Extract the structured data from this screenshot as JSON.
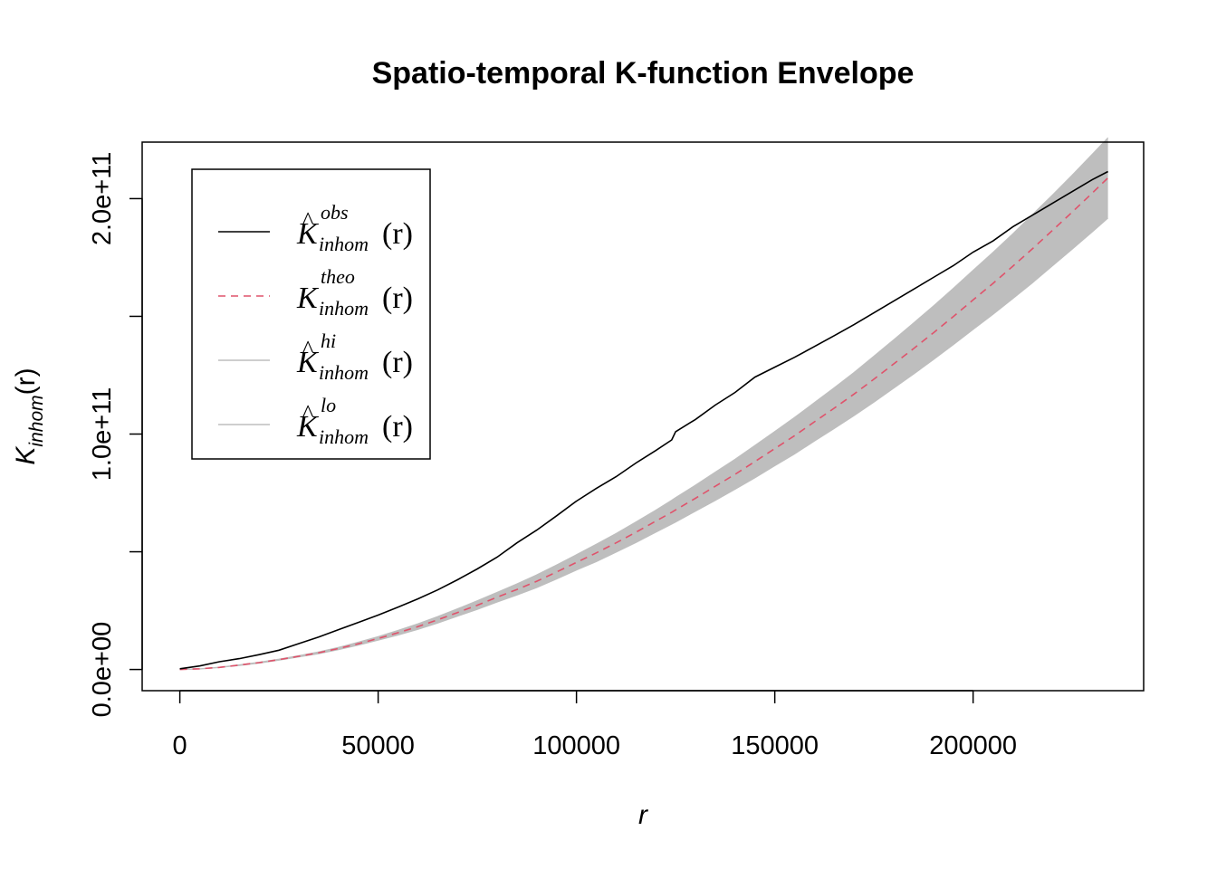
{
  "chart_data": {
    "type": "line",
    "title": "Spatio-temporal K-function Envelope",
    "xlabel": "r",
    "ylabel": {
      "base": "K",
      "subscript": "inhom",
      "arg": "(r)"
    },
    "xlim": [
      -9500,
      243000
    ],
    "ylim": [
      -9000000000,
      224000000000
    ],
    "x_ticks": [
      0,
      50000,
      100000,
      150000,
      200000
    ],
    "x_tick_labels": [
      "0",
      "50000",
      "100000",
      "150000",
      "200000"
    ],
    "y_ticks": [
      0,
      50000000000,
      100000000000,
      150000000000,
      200000000000
    ],
    "y_tick_labels": [
      "0.0e+00",
      "",
      "1.0e+11",
      "",
      "2.0e+11"
    ],
    "grid": false,
    "legend_position": "top-left",
    "legend": [
      {
        "id": "obs",
        "base": "K",
        "hat": true,
        "sup": "obs",
        "sub": "inhom",
        "arg": "(r)",
        "color": "#000000",
        "dash": "solid"
      },
      {
        "id": "theo",
        "base": "K",
        "hat": false,
        "sup": "theo",
        "sub": "inhom",
        "arg": "(r)",
        "color": "#DF536B",
        "dash": "dashed"
      },
      {
        "id": "hi",
        "base": "K",
        "hat": true,
        "sup": "hi",
        "sub": "inhom",
        "arg": "(r)",
        "color": "#BEBEBE",
        "dash": "solid"
      },
      {
        "id": "lo",
        "base": "K",
        "hat": true,
        "sup": "lo",
        "sub": "inhom",
        "arg": "(r)",
        "color": "#BEBEBE",
        "dash": "solid"
      }
    ],
    "x": [
      0,
      5000,
      10000,
      15000,
      20000,
      25000,
      30000,
      35000,
      40000,
      45000,
      50000,
      55000,
      60000,
      65000,
      70000,
      75000,
      80000,
      85000,
      90000,
      95000,
      100000,
      105000,
      110000,
      115000,
      120000,
      124000,
      125000,
      130000,
      135000,
      140000,
      145000,
      150000,
      155000,
      160000,
      165000,
      170000,
      175000,
      180000,
      185000,
      190000,
      195000,
      200000,
      205000,
      210000,
      215000,
      220000,
      225000,
      230000,
      234000
    ],
    "series": [
      {
        "name": "obs",
        "color": "#000000",
        "dash": "solid",
        "values": [
          300000000.0,
          1500000000.0,
          3300000000.0,
          4600000000.0,
          6300000000.0,
          8200000000.0,
          11000000000.0,
          13800000000.0,
          16900000000.0,
          20000000000.0,
          23100000000.0,
          26500000000.0,
          30000000000.0,
          33800000000.0,
          38100000000.0,
          42700000000.0,
          47700000000.0,
          53800000000.0,
          59200000000.0,
          65300000000.0,
          71500000000.0,
          76900000000.0,
          81900000000.0,
          87700000000.0,
          93000000000.0,
          97500000000.0,
          101000000000.0,
          106200000000.0,
          112300000000.0,
          117700000000.0,
          124200000000.0,
          128400000000.0,
          132600000000.0,
          137200000000.0,
          141800000000.0,
          146500000000.0,
          151500000000.0,
          156500000000.0,
          161500000000.0,
          166500000000.0,
          171500000000.0,
          177300000000.0,
          182000000000.0,
          188000000000.0,
          193000000000.0,
          198000000000.0,
          203000000000.0,
          208000000000.0,
          211500000000.0
        ]
      },
      {
        "name": "theo",
        "color": "#DF536B",
        "dash": "dashed",
        "values": [
          0.0,
          300000000.0,
          900000000.0,
          1900000000.0,
          2900000000.0,
          4200000000.0,
          5600000000.0,
          7100000000.0,
          8900000000.0,
          10900000000.0,
          13200000000.0,
          15600000000.0,
          18200000000.0,
          21100000000.0,
          24200000000.0,
          27300000000.0,
          30700000000.0,
          34000000000.0,
          37500000000.0,
          41400000000.0,
          45500000000.0,
          49500000000.0,
          53800000000.0,
          58300000000.0,
          63000000000.0,
          66800000000.0,
          67800000000.0,
          72700000000.0,
          77800000000.0,
          82900000000.0,
          88300000000.0,
          93800000000.0,
          99300000000.0,
          105200000000.0,
          111000000000.0,
          117000000000.0,
          123300000000.0,
          129800000000.0,
          136300000000.0,
          143000000000.0,
          149900000000.0,
          157000000000.0,
          164000000000.0,
          171300000000.0,
          178800000000.0,
          186500000000.0,
          194300000000.0,
          202300000000.0,
          208800000000.0
        ]
      },
      {
        "name": "hi",
        "color": "#BEBEBE",
        "dash": "solid",
        "values": [
          0.0,
          300000000.0,
          1000000000.0,
          2000000000.0,
          3100000000.0,
          4400000000.0,
          5900000000.0,
          7500000000.0,
          9400000000.0,
          11600000000.0,
          14000000000.0,
          16600000000.0,
          19400000000.0,
          22500000000.0,
          25800000000.0,
          29200000000.0,
          32800000000.0,
          36400000000.0,
          40200000000.0,
          44400000000.0,
          48800000000.0,
          53200000000.0,
          57800000000.0,
          62700000000.0,
          67700000000.0,
          71900000000.0,
          73000000000.0,
          78300000000.0,
          83800000000.0,
          89300000000.0,
          95200000000.0,
          101100000000.0,
          107100000000.0,
          113400000000.0,
          119700000000.0,
          126200000000.0,
          133100000000.0,
          140100000000.0,
          147200000000.0,
          154400000000.0,
          161900000000.0,
          169600000000.0,
          177200000000.0,
          185100000000.0,
          193300000000.0,
          201600000000.0,
          210100000000.0,
          218800000000.0,
          225900000000.0
        ]
      },
      {
        "name": "lo",
        "color": "#BEBEBE",
        "dash": "solid",
        "values": [
          0.0,
          200000000.0,
          800000000.0,
          1700000000.0,
          2700000000.0,
          3900000000.0,
          5300000000.0,
          6700000000.0,
          8400000000.0,
          10300000000.0,
          12400000000.0,
          14600000000.0,
          17000000000.0,
          19700000000.0,
          22600000000.0,
          25500000000.0,
          28600000000.0,
          31600000000.0,
          34800000000.0,
          38400000000.0,
          42200000000.0,
          45800000000.0,
          49800000000.0,
          53900000000.0,
          58300000000.0,
          61700000000.0,
          62600000000.0,
          67200000000.0,
          71800000000.0,
          76500000000.0,
          81400000000.0,
          86500000000.0,
          91500000000.0,
          97000000000.0,
          102300000000.0,
          107800000000.0,
          113500000000.0,
          119500000000.0,
          125400000000.0,
          131600000000.0,
          137900000000.0,
          144400000000.0,
          150800000000.0,
          157500000000.0,
          164300000000.0,
          171400000000.0,
          178500000000.0,
          185800000000.0,
          191700000000.0
        ]
      }
    ]
  }
}
